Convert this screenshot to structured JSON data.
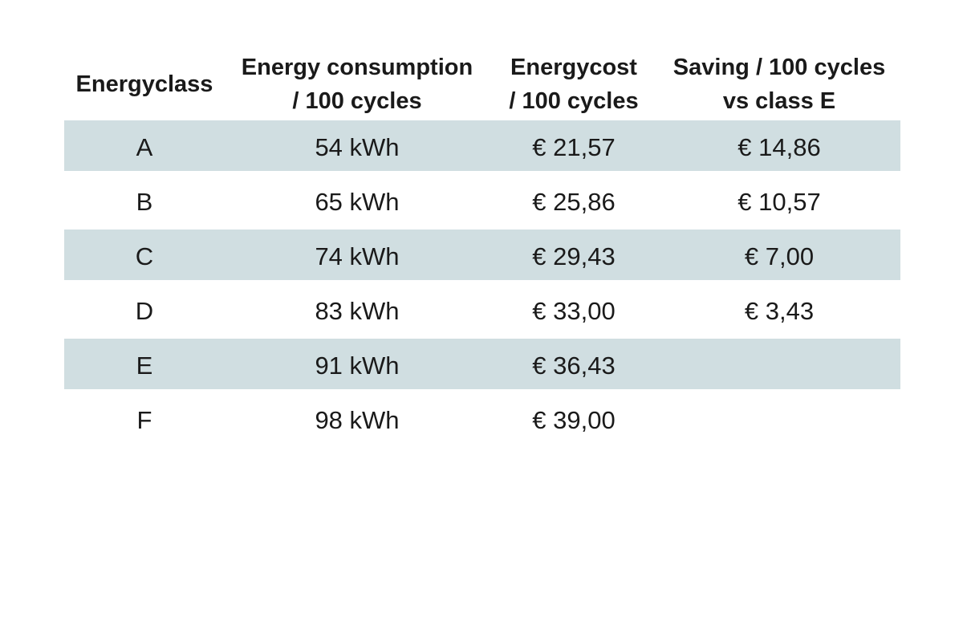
{
  "colors": {
    "page_background": "#ffffff",
    "row_shade": "#d0dee1",
    "text": "#1a1a1a"
  },
  "table": {
    "headers": [
      {
        "line1": "Energyclass",
        "line2": ""
      },
      {
        "line1": "Energy consumption",
        "line2": "/ 100 cycles"
      },
      {
        "line1": "Energycost",
        "line2": "/ 100 cycles"
      },
      {
        "line1": "Saving / 100 cycles",
        "line2": "vs class E"
      }
    ],
    "rows": [
      {
        "energyclass": "A",
        "consumption": "54 kWh",
        "cost": "€ 21,57",
        "saving": "€ 14,86"
      },
      {
        "energyclass": "B",
        "consumption": "65 kWh",
        "cost": "€ 25,86",
        "saving": "€ 10,57"
      },
      {
        "energyclass": "C",
        "consumption": "74 kWh",
        "cost": "€ 29,43",
        "saving": "€ 7,00"
      },
      {
        "energyclass": "D",
        "consumption": "83 kWh",
        "cost": "€ 33,00",
        "saving": "€ 3,43"
      },
      {
        "energyclass": "E",
        "consumption": "91 kWh",
        "cost": "€ 36,43",
        "saving": ""
      },
      {
        "energyclass": "F",
        "consumption": "98 kWh",
        "cost": "€ 39,00",
        "saving": ""
      }
    ]
  },
  "chart_data": {
    "type": "table",
    "title": "",
    "columns": [
      "Energyclass",
      "Energy consumption / 100 cycles",
      "Energycost / 100 cycles",
      "Saving / 100 cycles vs class E"
    ],
    "rows": [
      [
        "A",
        "54 kWh",
        "€ 21,57",
        "€ 14,86"
      ],
      [
        "B",
        "65 kWh",
        "€ 25,86",
        "€ 10,57"
      ],
      [
        "C",
        "74 kWh",
        "€ 29,43",
        "€ 7,00"
      ],
      [
        "D",
        "83 kWh",
        "€ 33,00",
        "€ 3,43"
      ],
      [
        "E",
        "91 kWh",
        "€ 36,43",
        ""
      ],
      [
        "F",
        "98 kWh",
        "€ 39,00",
        ""
      ]
    ],
    "layout_hints": {
      "banded_rows": true,
      "shaded_row_indices": [
        0,
        2,
        4
      ],
      "shade_color": "#d0dee1",
      "values_units": {
        "consumption": "kWh",
        "cost": "EUR",
        "saving": "EUR"
      }
    }
  }
}
